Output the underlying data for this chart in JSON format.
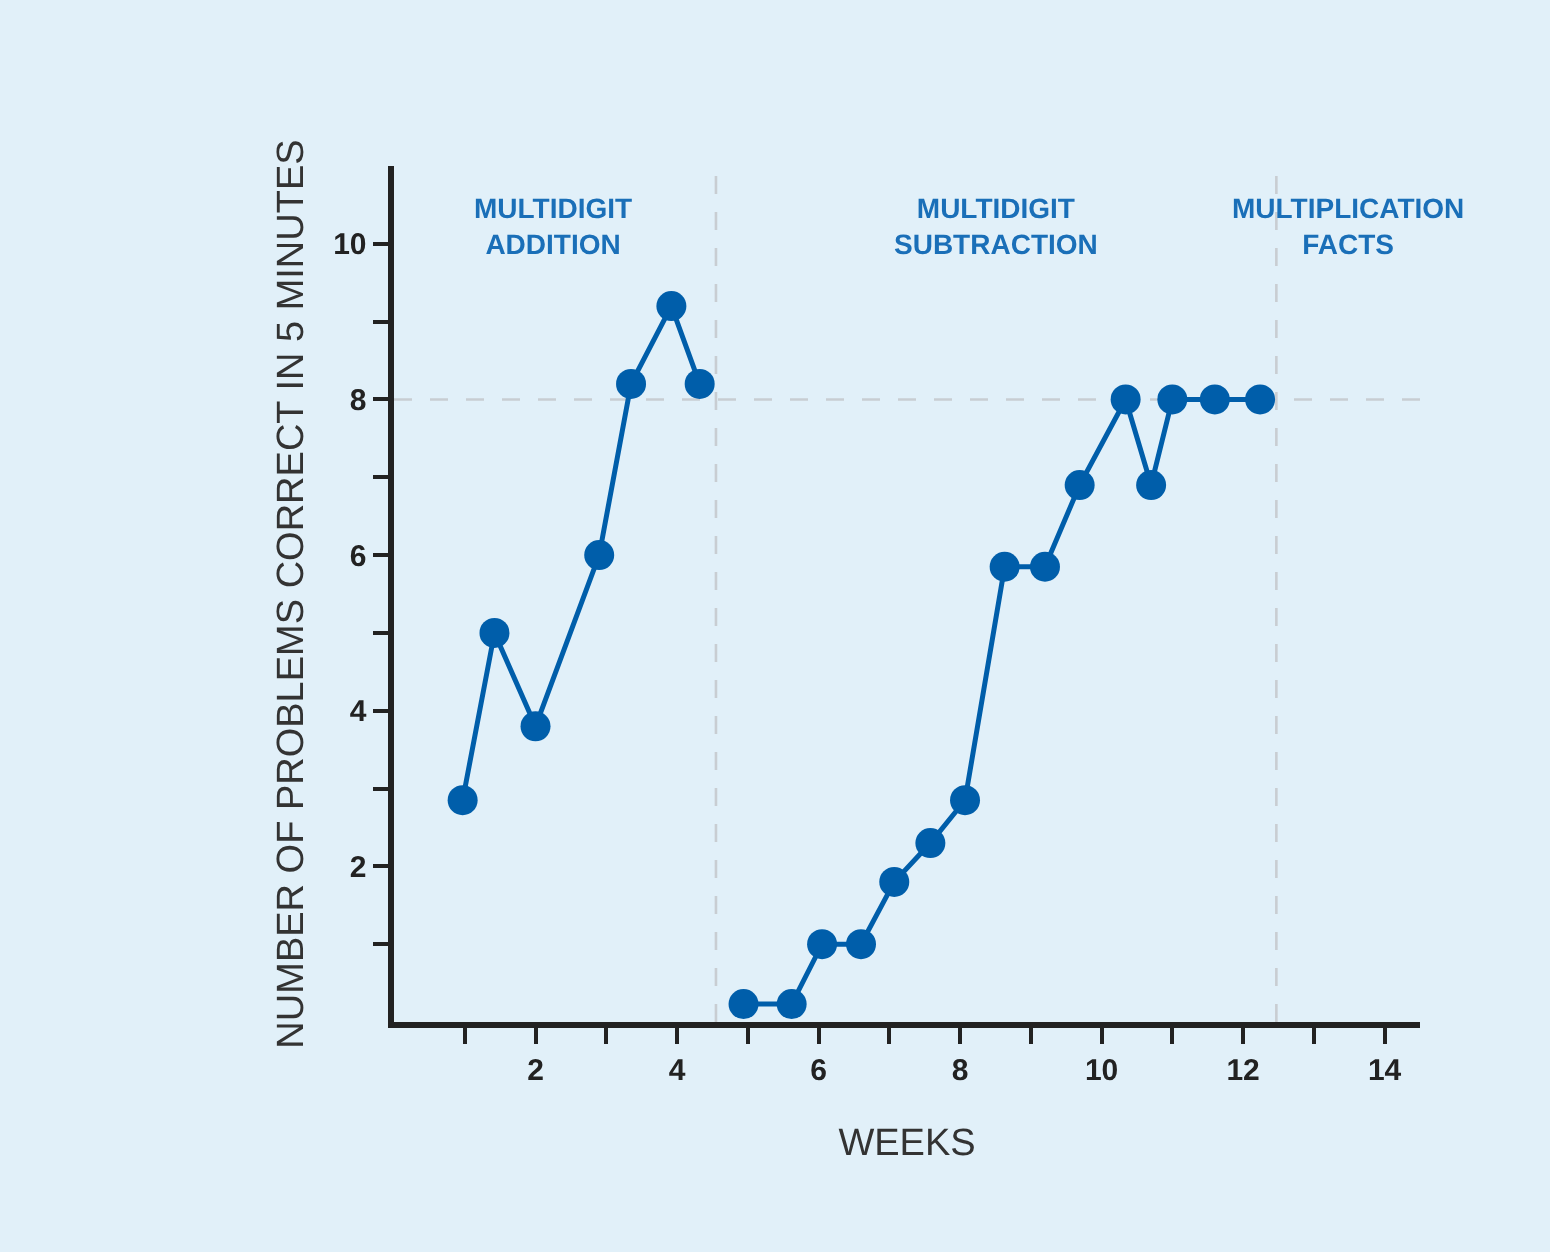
{
  "chart_data": {
    "type": "line",
    "xlabel": "WEEKS",
    "ylabel": "NUMBER OF PROBLEMS CORRECT IN 5 MINUTES",
    "series": [
      {
        "color": "#005eaa",
        "x": [
          0.97,
          1.42,
          2.0,
          2.9,
          3.35,
          3.92,
          4.32
        ],
        "values": [
          2.85,
          5.0,
          3.8,
          6.0,
          8.2,
          9.2,
          8.2
        ]
      },
      {
        "color": "#005eaa",
        "x": [
          4.94,
          5.62,
          6.05,
          6.6,
          7.07,
          7.58,
          8.07,
          8.63,
          9.2,
          9.69,
          10.34,
          10.7,
          11.0,
          11.6,
          12.24
        ],
        "values": [
          0.23,
          0.23,
          1.0,
          1.0,
          1.8,
          2.3,
          2.85,
          5.85,
          5.85,
          6.9,
          8.0,
          6.9,
          8.0,
          8.0,
          8.0
        ]
      }
    ],
    "xlim": [
      0,
      14.5
    ],
    "ylim": [
      0,
      11
    ],
    "xticks": [
      {
        "value": 1,
        "label": null
      },
      2,
      {
        "value": 3,
        "label": null
      },
      4,
      {
        "value": 5,
        "label": null
      },
      6,
      {
        "value": 7,
        "label": null
      },
      8,
      {
        "value": 9,
        "label": null
      },
      10,
      {
        "value": 11,
        "label": null
      },
      12,
      {
        "value": 13,
        "label": null
      },
      14
    ],
    "yticks": [
      {
        "value": 1,
        "label": null
      },
      2,
      {
        "value": 3,
        "label": null
      },
      4,
      {
        "value": 5,
        "label": null
      },
      6,
      {
        "value": 7,
        "label": null
      },
      8,
      {
        "value": 9,
        "label": null
      },
      10
    ],
    "ref_lines": [
      {
        "axis": "x",
        "value": 4.55,
        "color": "#c8cdd2",
        "line_style": "dashed"
      },
      {
        "axis": "x",
        "value": 12.47,
        "color": "#c8cdd2",
        "line_style": "dashed"
      },
      {
        "axis": "y",
        "value": 8,
        "color": "#c8cdd2",
        "line_style": "dashed"
      }
    ],
    "annotations": [
      "MULTIDIGIT\nADDITION",
      "MULTIDIGIT\nSUBTRACTION",
      "MULTIPLICATION\nFACTS"
    ],
    "marker": "circle",
    "line_style": "solid",
    "grid": false
  }
}
